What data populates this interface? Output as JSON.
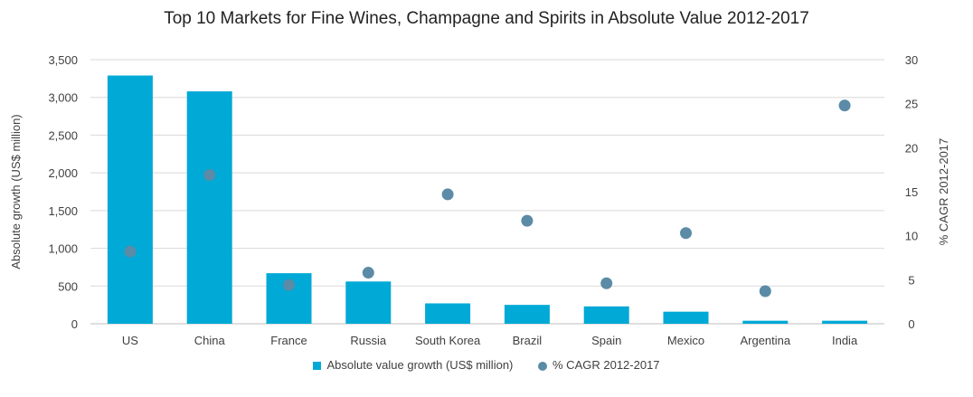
{
  "chart_data": {
    "type": "bar",
    "title": "Top 10 Markets for Fine Wines, Champagne and Spirits in Absolute Value 2012-2017",
    "categories": [
      "US",
      "China",
      "France",
      "Russia",
      "South Korea",
      "Brazil",
      "Spain",
      "Mexico",
      "Argentina",
      "India"
    ],
    "series": [
      {
        "name": "Absolute value growth (US$ million)",
        "type": "bar",
        "axis": "left",
        "color": "#00A9D6",
        "values": [
          3290,
          3080,
          670,
          560,
          270,
          250,
          230,
          160,
          40,
          40
        ]
      },
      {
        "name": "% CAGR 2012-2017",
        "type": "scatter",
        "axis": "right",
        "color": "#5B8BA6",
        "values": [
          8.2,
          16.9,
          4.4,
          5.8,
          14.7,
          11.7,
          4.6,
          10.3,
          3.7,
          24.8
        ]
      }
    ],
    "ylabel": "Absolute growth (US$ million)",
    "ylim": [
      0,
      3500
    ],
    "yticks": [
      "0",
      "500",
      "1,000",
      "1,500",
      "2,000",
      "2,500",
      "3,000",
      "3,500"
    ],
    "y2label": "% CAGR 2012-2017",
    "y2lim": [
      0,
      30
    ],
    "y2ticks": [
      "0",
      "5",
      "10",
      "15",
      "20",
      "25",
      "30"
    ],
    "grid": true,
    "legend": "bottom-center"
  }
}
